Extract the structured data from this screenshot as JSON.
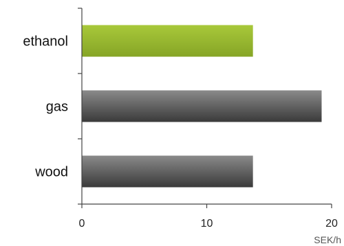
{
  "chart_data": {
    "type": "bar",
    "orientation": "horizontal",
    "categories": [
      "ethanol",
      "gas",
      "wood"
    ],
    "values": [
      13.7,
      19.2,
      13.7
    ],
    "bar_colors": [
      "#9ab82d",
      "#5c5c5c",
      "#5c5c5c"
    ],
    "xlim": [
      0,
      20
    ],
    "xticks": [
      0,
      10,
      20
    ],
    "x_unit_label": "SEK/h",
    "grid": false,
    "legend": "none"
  }
}
